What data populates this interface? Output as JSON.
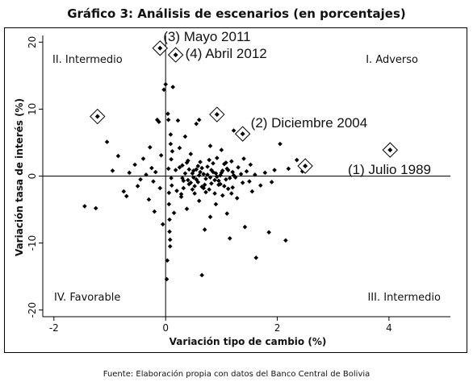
{
  "title": "Gráfico 3: Análisis de escenarios (en porcentajes)",
  "source": "Fuente: Elaboración propia con datos del Banco Central de Bolivia",
  "chart_data": {
    "type": "scatter",
    "xlabel": "Variación tipo de cambio (%)",
    "ylabel": "Variación tasa de interés (%)",
    "xlim": [
      -2.2,
      5.1
    ],
    "ylim": [
      -21,
      21
    ],
    "x_ticks": [
      -2,
      0,
      2,
      4
    ],
    "y_ticks": [
      20,
      10,
      0,
      -10,
      -20
    ],
    "x_tick_labels": [
      "-2",
      "0",
      "2",
      "4"
    ],
    "y_tick_labels": [
      "20",
      "10",
      "0",
      "-10",
      "-20"
    ],
    "grid": false,
    "marker_color": "#000000",
    "quadrant_labels": [
      {
        "text": "II. Intermedio",
        "position": "top-left"
      },
      {
        "text": "I. Adverso",
        "position": "top-right"
      },
      {
        "text": "IV. Favorable",
        "position": "bottom-left"
      },
      {
        "text": "III. Intermedio",
        "position": "bottom-right"
      }
    ],
    "highlighted": [
      {
        "x": 4.02,
        "y": 3.9,
        "label": "(1) Julio 1989"
      },
      {
        "x": 1.38,
        "y": 6.3,
        "label": "(2) Diciembre 2004"
      },
      {
        "x": -0.1,
        "y": 19.1,
        "label": "(3) Mayo 2011"
      },
      {
        "x": 0.18,
        "y": 18.1,
        "label": "(4) Abril 2012"
      },
      {
        "x": 2.5,
        "y": 1.5,
        "label": ""
      },
      {
        "x": 0.92,
        "y": 9.2,
        "label": ""
      },
      {
        "x": -1.22,
        "y": 8.9,
        "label": ""
      }
    ],
    "points": [
      [
        -1.45,
        -4.5
      ],
      [
        -1.25,
        -4.8
      ],
      [
        -1.05,
        5.1
      ],
      [
        -0.95,
        0.8
      ],
      [
        -0.85,
        3.0
      ],
      [
        -0.75,
        -2.3
      ],
      [
        -0.7,
        -3.0
      ],
      [
        -0.65,
        0.5
      ],
      [
        -0.55,
        1.7
      ],
      [
        -0.5,
        -1.5
      ],
      [
        -0.45,
        -0.5
      ],
      [
        -0.4,
        2.6
      ],
      [
        -0.35,
        0.2
      ],
      [
        -0.3,
        -3.5
      ],
      [
        -0.28,
        4.3
      ],
      [
        -0.25,
        1.2
      ],
      [
        -0.22,
        -0.8
      ],
      [
        -0.2,
        -5.3
      ],
      [
        -0.18,
        0.6
      ],
      [
        -0.15,
        8.4
      ],
      [
        -0.12,
        8.1
      ],
      [
        -0.1,
        -1.8
      ],
      [
        -0.08,
        3.1
      ],
      [
        -0.05,
        -7.2
      ],
      [
        -0.03,
        12.9
      ],
      [
        0.0,
        13.7
      ],
      [
        0.02,
        -15.4
      ],
      [
        0.03,
        -12.6
      ],
      [
        0.04,
        9.3
      ],
      [
        0.05,
        8.4
      ],
      [
        0.05,
        1.1
      ],
      [
        0.06,
        -2.5
      ],
      [
        0.06,
        -4.2
      ],
      [
        0.07,
        -6.5
      ],
      [
        0.07,
        -8.3
      ],
      [
        0.08,
        -9.5
      ],
      [
        0.08,
        -10.5
      ],
      [
        0.09,
        6.2
      ],
      [
        0.09,
        4.8
      ],
      [
        0.1,
        2.5
      ],
      [
        0.1,
        -0.3
      ],
      [
        0.11,
        -1.4
      ],
      [
        0.12,
        3.7
      ],
      [
        0.13,
        13.3
      ],
      [
        0.15,
        -5.5
      ],
      [
        0.18,
        0.9
      ],
      [
        0.2,
        -2.2
      ],
      [
        0.22,
        8.3
      ],
      [
        0.25,
        4.2
      ],
      [
        0.28,
        -3.1
      ],
      [
        0.3,
        1.6
      ],
      [
        0.32,
        -0.7
      ],
      [
        0.35,
        5.9
      ],
      [
        0.38,
        -4.9
      ],
      [
        0.4,
        2.3
      ],
      [
        0.42,
        -1.2
      ],
      [
        0.45,
        3.3
      ],
      [
        0.48,
        0.4
      ],
      [
        0.5,
        -0.2
      ],
      [
        0.52,
        -2.6
      ],
      [
        0.55,
        1.0
      ],
      [
        0.55,
        7.8
      ],
      [
        0.58,
        -0.9
      ],
      [
        0.6,
        8.4
      ],
      [
        0.6,
        -3.7
      ],
      [
        0.62,
        2.1
      ],
      [
        0.65,
        -14.8
      ],
      [
        0.65,
        -1.6
      ],
      [
        0.68,
        0.3
      ],
      [
        0.7,
        -8.0
      ],
      [
        0.72,
        -0.4
      ],
      [
        0.75,
        1.4
      ],
      [
        0.78,
        -2.0
      ],
      [
        0.8,
        4.5
      ],
      [
        0.8,
        -6.1
      ],
      [
        0.82,
        -1.1
      ],
      [
        0.85,
        0.6
      ],
      [
        0.88,
        -0.6
      ],
      [
        0.9,
        -4.2
      ],
      [
        0.92,
        2.7
      ],
      [
        0.95,
        -1.3
      ],
      [
        0.98,
        0.1
      ],
      [
        1.0,
        3.9
      ],
      [
        1.02,
        -2.9
      ],
      [
        1.05,
        1.8
      ],
      [
        1.08,
        -0.5
      ],
      [
        1.1,
        -5.6
      ],
      [
        1.12,
        0.9
      ],
      [
        1.15,
        -9.3
      ],
      [
        1.18,
        2.2
      ],
      [
        1.2,
        -1.7
      ],
      [
        1.22,
        6.8
      ],
      [
        1.25,
        -0.2
      ],
      [
        1.28,
        -3.3
      ],
      [
        1.3,
        1.3
      ],
      [
        1.35,
        0.3
      ],
      [
        1.38,
        -1.0
      ],
      [
        1.4,
        2.6
      ],
      [
        1.42,
        -7.6
      ],
      [
        1.45,
        0.7
      ],
      [
        1.5,
        -0.8
      ],
      [
        1.52,
        1.7
      ],
      [
        1.55,
        -2.3
      ],
      [
        1.6,
        0.2
      ],
      [
        1.62,
        -12.2
      ],
      [
        1.7,
        -1.4
      ],
      [
        1.78,
        0.5
      ],
      [
        1.85,
        -8.4
      ],
      [
        1.9,
        -0.9
      ],
      [
        1.95,
        0.9
      ],
      [
        2.05,
        4.8
      ],
      [
        2.15,
        -9.6
      ],
      [
        2.2,
        1.1
      ],
      [
        2.35,
        2.4
      ],
      [
        2.45,
        0.7
      ],
      [
        0.3,
        -0.3
      ],
      [
        0.35,
        0.4
      ],
      [
        0.4,
        -0.6
      ],
      [
        0.45,
        -1.0
      ],
      [
        0.5,
        0.8
      ],
      [
        0.55,
        -0.5
      ],
      [
        0.6,
        0.1
      ],
      [
        0.65,
        1.2
      ],
      [
        0.7,
        -1.3
      ],
      [
        0.75,
        0.2
      ],
      [
        0.8,
        -0.2
      ],
      [
        0.85,
        1.9
      ],
      [
        0.9,
        0.4
      ],
      [
        0.95,
        -0.7
      ],
      [
        1.0,
        0.5
      ],
      [
        1.05,
        -1.5
      ],
      [
        1.1,
        1.1
      ],
      [
        1.15,
        -0.3
      ],
      [
        1.2,
        0.6
      ],
      [
        0.25,
        1.3
      ],
      [
        0.32,
        -1.8
      ],
      [
        0.42,
        1.0
      ],
      [
        0.52,
        -1.5
      ],
      [
        0.62,
        0.6
      ],
      [
        0.72,
        -2.4
      ],
      [
        0.82,
        0.9
      ],
      [
        0.92,
        -0.1
      ],
      [
        1.02,
        0.8
      ],
      [
        1.12,
        -1.9
      ],
      [
        1.22,
        0.1
      ],
      [
        0.28,
        -2.7
      ],
      [
        0.38,
        2.0
      ],
      [
        0.48,
        -2.0
      ],
      [
        0.58,
        1.5
      ],
      [
        0.68,
        -1.8
      ],
      [
        0.78,
        2.4
      ],
      [
        0.88,
        -2.6
      ],
      [
        0.98,
        -1.2
      ],
      [
        1.08,
        2.0
      ],
      [
        1.18,
        -2.6
      ]
    ]
  }
}
